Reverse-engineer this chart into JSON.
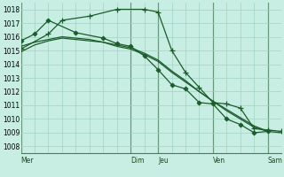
{
  "bg_color": "#c8eee4",
  "grid_color": "#a0d4c4",
  "line_color": "#1a5c2a",
  "ylim": [
    1007.5,
    1018.5
  ],
  "yticks": [
    1008,
    1009,
    1010,
    1011,
    1012,
    1013,
    1014,
    1015,
    1016,
    1017,
    1018
  ],
  "day_labels": [
    "Mer",
    "Dim",
    "Jeu",
    "Ven",
    "Sam"
  ],
  "day_x": [
    0,
    16,
    20,
    28,
    36
  ],
  "vline_x": [
    0,
    16,
    20,
    28,
    36
  ],
  "xmin": 0,
  "xmax": 38,
  "series": [
    {
      "x": [
        0,
        2,
        4,
        6,
        8,
        10,
        12,
        14,
        16,
        18,
        20,
        22,
        24,
        26,
        28,
        30,
        32,
        34,
        36,
        38
      ],
      "y": [
        1014.9,
        1015.4,
        1015.7,
        1015.9,
        1015.8,
        1015.7,
        1015.6,
        1015.4,
        1015.2,
        1014.8,
        1014.3,
        1013.5,
        1012.8,
        1012.0,
        1011.3,
        1010.7,
        1010.1,
        1009.5,
        1009.1,
        1009.0
      ],
      "marker": null,
      "lw": 0.9
    },
    {
      "x": [
        0,
        2,
        4,
        6,
        8,
        10,
        12,
        14,
        16,
        18,
        20,
        22,
        24,
        26,
        28,
        30,
        32,
        34,
        36
      ],
      "y": [
        1015.3,
        1015.6,
        1015.8,
        1016.0,
        1015.9,
        1015.8,
        1015.6,
        1015.3,
        1015.1,
        1014.7,
        1014.2,
        1013.4,
        1012.7,
        1012.0,
        1011.3,
        1010.6,
        1010.0,
        1009.4,
        1009.1
      ],
      "marker": null,
      "lw": 0.9
    },
    {
      "x": [
        0,
        4,
        6,
        10,
        14,
        18,
        20,
        22,
        24,
        26,
        28,
        30,
        32,
        34,
        36,
        38
      ],
      "y": [
        1015.1,
        1016.2,
        1017.2,
        1017.5,
        1018.0,
        1018.0,
        1017.8,
        1015.0,
        1013.4,
        1012.3,
        1011.2,
        1011.1,
        1010.8,
        1009.3,
        1009.2,
        1009.1
      ],
      "marker": "+",
      "lw": 0.9
    },
    {
      "x": [
        0,
        2,
        4,
        8,
        12,
        14,
        16,
        18,
        20,
        22,
        24,
        26,
        28,
        30,
        32,
        34,
        36
      ],
      "y": [
        1015.7,
        1016.2,
        1017.2,
        1016.3,
        1015.9,
        1015.5,
        1015.3,
        1014.6,
        1013.6,
        1012.5,
        1012.2,
        1011.2,
        1011.1,
        1010.0,
        1009.6,
        1009.0,
        1009.1
      ],
      "marker": "D",
      "lw": 0.9
    }
  ]
}
